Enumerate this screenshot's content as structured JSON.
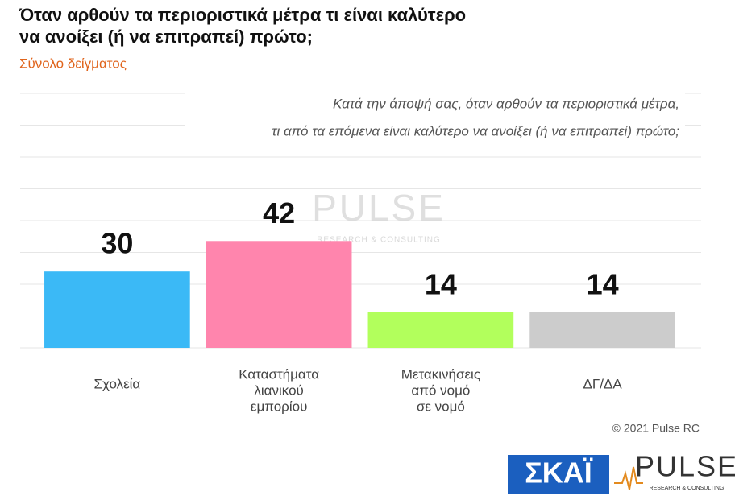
{
  "chart_data": {
    "type": "bar",
    "title": [
      "Όταν αρθούν τα περιοριστικά μέτρα τι είναι καλύτερο",
      "να ανοίξει (ή να επιτραπεί) πρώτο;"
    ],
    "subtitle": "Σύνολο δείγματος",
    "question": [
      "Κατά την άποψή σας, όταν αρθούν τα περιοριστικά μέτρα,",
      "τι από τα επόμενα είναι καλύτερο να ανοίξει (ή να επιτραπεί) πρώτο;"
    ],
    "categories": [
      [
        "Σχολεία"
      ],
      [
        "Καταστήματα",
        "λιανικού",
        "εμπορίου"
      ],
      [
        "Μετακινήσεις",
        "από νομό",
        "σε νομό"
      ],
      [
        "ΔΓ/ΔΑ"
      ]
    ],
    "values": [
      30,
      42,
      14,
      14
    ],
    "colors": [
      "#3bb9f6",
      "#ff85ad",
      "#b2ff5c",
      "#cccccc"
    ],
    "ylim": [
      0,
      100
    ],
    "yticks": [
      0,
      12.5,
      25,
      37.5,
      50,
      62.5,
      75,
      87.5,
      100
    ],
    "grid": true,
    "copyright": "© 2021 Pulse RC",
    "logos": {
      "skai": "ΣΚΑΪ",
      "pulse": "PULSE",
      "pulse_sub": "RESEARCH & CONSULTING"
    }
  }
}
